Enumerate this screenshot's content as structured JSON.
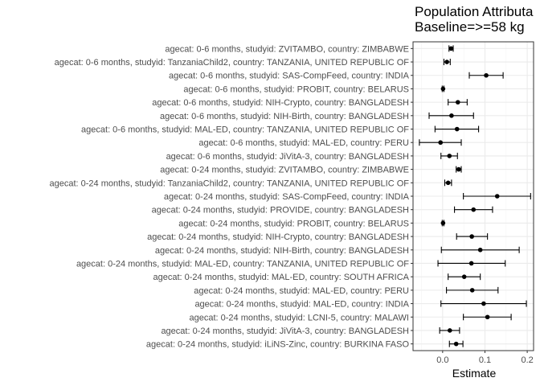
{
  "chart_data": {
    "type": "forest",
    "title": [
      "Population Attributa",
      "Baseline=>=58 kg"
    ],
    "xlabel": "Estimate",
    "ylabel": "",
    "xlim": [
      -0.07,
      0.215
    ],
    "xticks": [
      0.0,
      0.1,
      0.2
    ],
    "xtick_labels": [
      "0.0",
      "0.1",
      "0.2"
    ],
    "grid": true,
    "colors": {
      "point": "#000000",
      "errorbar": "#000000",
      "panel_border": "#333333",
      "grid_major": "#ebebeb",
      "grid_minor": "#f5f5f5"
    },
    "rows": [
      {
        "label": "agecat: 0-6 months, studyid: ZVITAMBO, country: ZIMBABWE",
        "estimate": 0.02,
        "lower": 0.015,
        "upper": 0.025
      },
      {
        "label": "agecat: 0-6 months, studyid: TanzaniaChild2, country: TANZANIA, UNITED REPUBLIC OF",
        "estimate": 0.01,
        "lower": 0.003,
        "upper": 0.018
      },
      {
        "label": "agecat: 0-6 months, studyid: SAS-CompFeed, country: INDIA",
        "estimate": 0.103,
        "lower": 0.063,
        "upper": 0.143
      },
      {
        "label": "agecat: 0-6 months, studyid: PROBIT, country: BELARUS",
        "estimate": 0.001,
        "lower": -0.001,
        "upper": 0.003
      },
      {
        "label": "agecat: 0-6 months, studyid: NIH-Crypto, country: BANGLADESH",
        "estimate": 0.036,
        "lower": 0.013,
        "upper": 0.058
      },
      {
        "label": "agecat: 0-6 months, studyid: NIH-Birth, country: BANGLADESH",
        "estimate": 0.021,
        "lower": -0.032,
        "upper": 0.073
      },
      {
        "label": "agecat: 0-6 months, studyid: MAL-ED, country: TANZANIA, UNITED REPUBLIC OF",
        "estimate": 0.034,
        "lower": -0.018,
        "upper": 0.085
      },
      {
        "label": "agecat: 0-6 months, studyid: MAL-ED, country: PERU",
        "estimate": -0.005,
        "lower": -0.055,
        "upper": 0.044
      },
      {
        "label": "agecat: 0-6 months, studyid: JiVitA-3, country: BANGLADESH",
        "estimate": 0.016,
        "lower": -0.004,
        "upper": 0.035
      },
      {
        "label": "agecat: 0-24 months, studyid: ZVITAMBO, country: ZIMBABWE",
        "estimate": 0.038,
        "lower": 0.032,
        "upper": 0.044
      },
      {
        "label": "agecat: 0-24 months, studyid: TanzaniaChild2, country: TANZANIA, UNITED REPUBLIC OF",
        "estimate": 0.013,
        "lower": 0.005,
        "upper": 0.021
      },
      {
        "label": "agecat: 0-24 months, studyid: SAS-CompFeed, country: INDIA",
        "estimate": 0.129,
        "lower": 0.049,
        "upper": 0.208
      },
      {
        "label": "agecat: 0-24 months, studyid: PROVIDE, country: BANGLADESH",
        "estimate": 0.073,
        "lower": 0.028,
        "upper": 0.118
      },
      {
        "label": "agecat: 0-24 months, studyid: PROBIT, country: BELARUS",
        "estimate": 0.001,
        "lower": -0.001,
        "upper": 0.003
      },
      {
        "label": "agecat: 0-24 months, studyid: NIH-Crypto, country: BANGLADESH",
        "estimate": 0.069,
        "lower": 0.033,
        "upper": 0.106
      },
      {
        "label": "agecat: 0-24 months, studyid: NIH-Birth, country: BANGLADESH",
        "estimate": 0.089,
        "lower": -0.003,
        "upper": 0.181
      },
      {
        "label": "agecat: 0-24 months, studyid: MAL-ED, country: TANZANIA, UNITED REPUBLIC OF",
        "estimate": 0.068,
        "lower": -0.011,
        "upper": 0.148
      },
      {
        "label": "agecat: 0-24 months, studyid: MAL-ED, country: SOUTH AFRICA",
        "estimate": 0.051,
        "lower": 0.013,
        "upper": 0.089
      },
      {
        "label": "agecat: 0-24 months, studyid: MAL-ED, country: PERU",
        "estimate": 0.07,
        "lower": 0.009,
        "upper": 0.131
      },
      {
        "label": "agecat: 0-24 months, studyid: MAL-ED, country: INDIA",
        "estimate": 0.097,
        "lower": -0.004,
        "upper": 0.198
      },
      {
        "label": "agecat: 0-24 months, studyid: LCNI-5, country: MALAWI",
        "estimate": 0.106,
        "lower": 0.049,
        "upper": 0.162
      },
      {
        "label": "agecat: 0-24 months, studyid: JiVitA-3, country: BANGLADESH",
        "estimate": 0.017,
        "lower": -0.007,
        "upper": 0.04
      },
      {
        "label": "agecat: 0-24 months, studyid: iLiNS-Zinc, country: BURKINA FASO",
        "estimate": 0.032,
        "lower": 0.016,
        "upper": 0.048
      }
    ]
  }
}
